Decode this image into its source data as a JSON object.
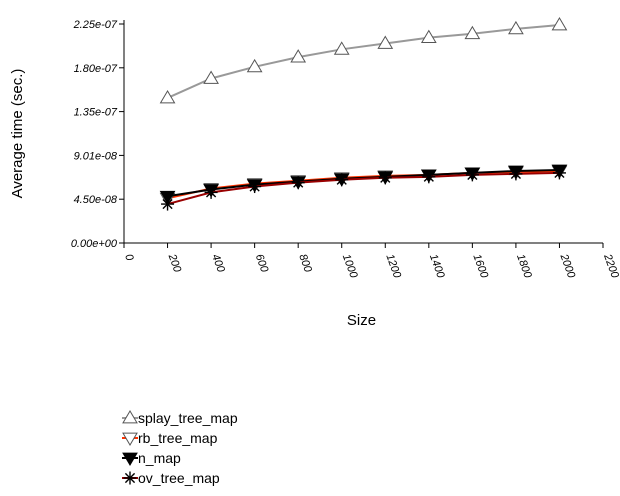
{
  "chart_data": {
    "type": "line",
    "title": "",
    "xlabel": "Size",
    "ylabel": "Average time (sec.)",
    "xlim": [
      0,
      2200
    ],
    "ylim": [
      0,
      2.25e-07
    ],
    "x_ticks": [
      "0",
      "200",
      "400",
      "600",
      "800",
      "1000",
      "1200",
      "1400",
      "1600",
      "1800",
      "2000",
      "2200"
    ],
    "y_ticks": [
      "0.00e+00",
      "4.50e-08",
      "9.01e-08",
      "1.35e-07",
      "1.80e-07",
      "2.25e-07"
    ],
    "x": [
      200,
      400,
      600,
      800,
      1000,
      1200,
      1400,
      1600,
      1800,
      2000
    ],
    "grid": false,
    "legend_position": "bottom-left",
    "series": [
      {
        "name": "splay_tree_map",
        "color": "#999999",
        "marker": "triangle-up-open",
        "values": [
          1.49e-07,
          1.69e-07,
          1.81e-07,
          1.91e-07,
          1.99e-07,
          2.05e-07,
          2.11e-07,
          2.15e-07,
          2.2e-07,
          2.24e-07
        ]
      },
      {
        "name": "rb_tree_map",
        "color": "#ff3300",
        "marker": "triangle-down-open",
        "values": [
          4.6e-08,
          5.6e-08,
          6.1e-08,
          6.4e-08,
          6.7e-08,
          6.9e-08,
          7e-08,
          7.2e-08,
          7.3e-08,
          7.4e-08
        ]
      },
      {
        "name": "n_map",
        "color": "#000000",
        "marker": "triangle-down-filled",
        "values": [
          4.8e-08,
          5.5e-08,
          6e-08,
          6.3e-08,
          6.6e-08,
          6.8e-08,
          7e-08,
          7.2e-08,
          7.4e-08,
          7.5e-08
        ]
      },
      {
        "name": "ov_tree_map",
        "color": "#990000",
        "marker": "asterisk",
        "values": [
          4e-08,
          5.2e-08,
          5.8e-08,
          6.2e-08,
          6.5e-08,
          6.7e-08,
          6.8e-08,
          7e-08,
          7.1e-08,
          7.2e-08
        ]
      }
    ]
  }
}
